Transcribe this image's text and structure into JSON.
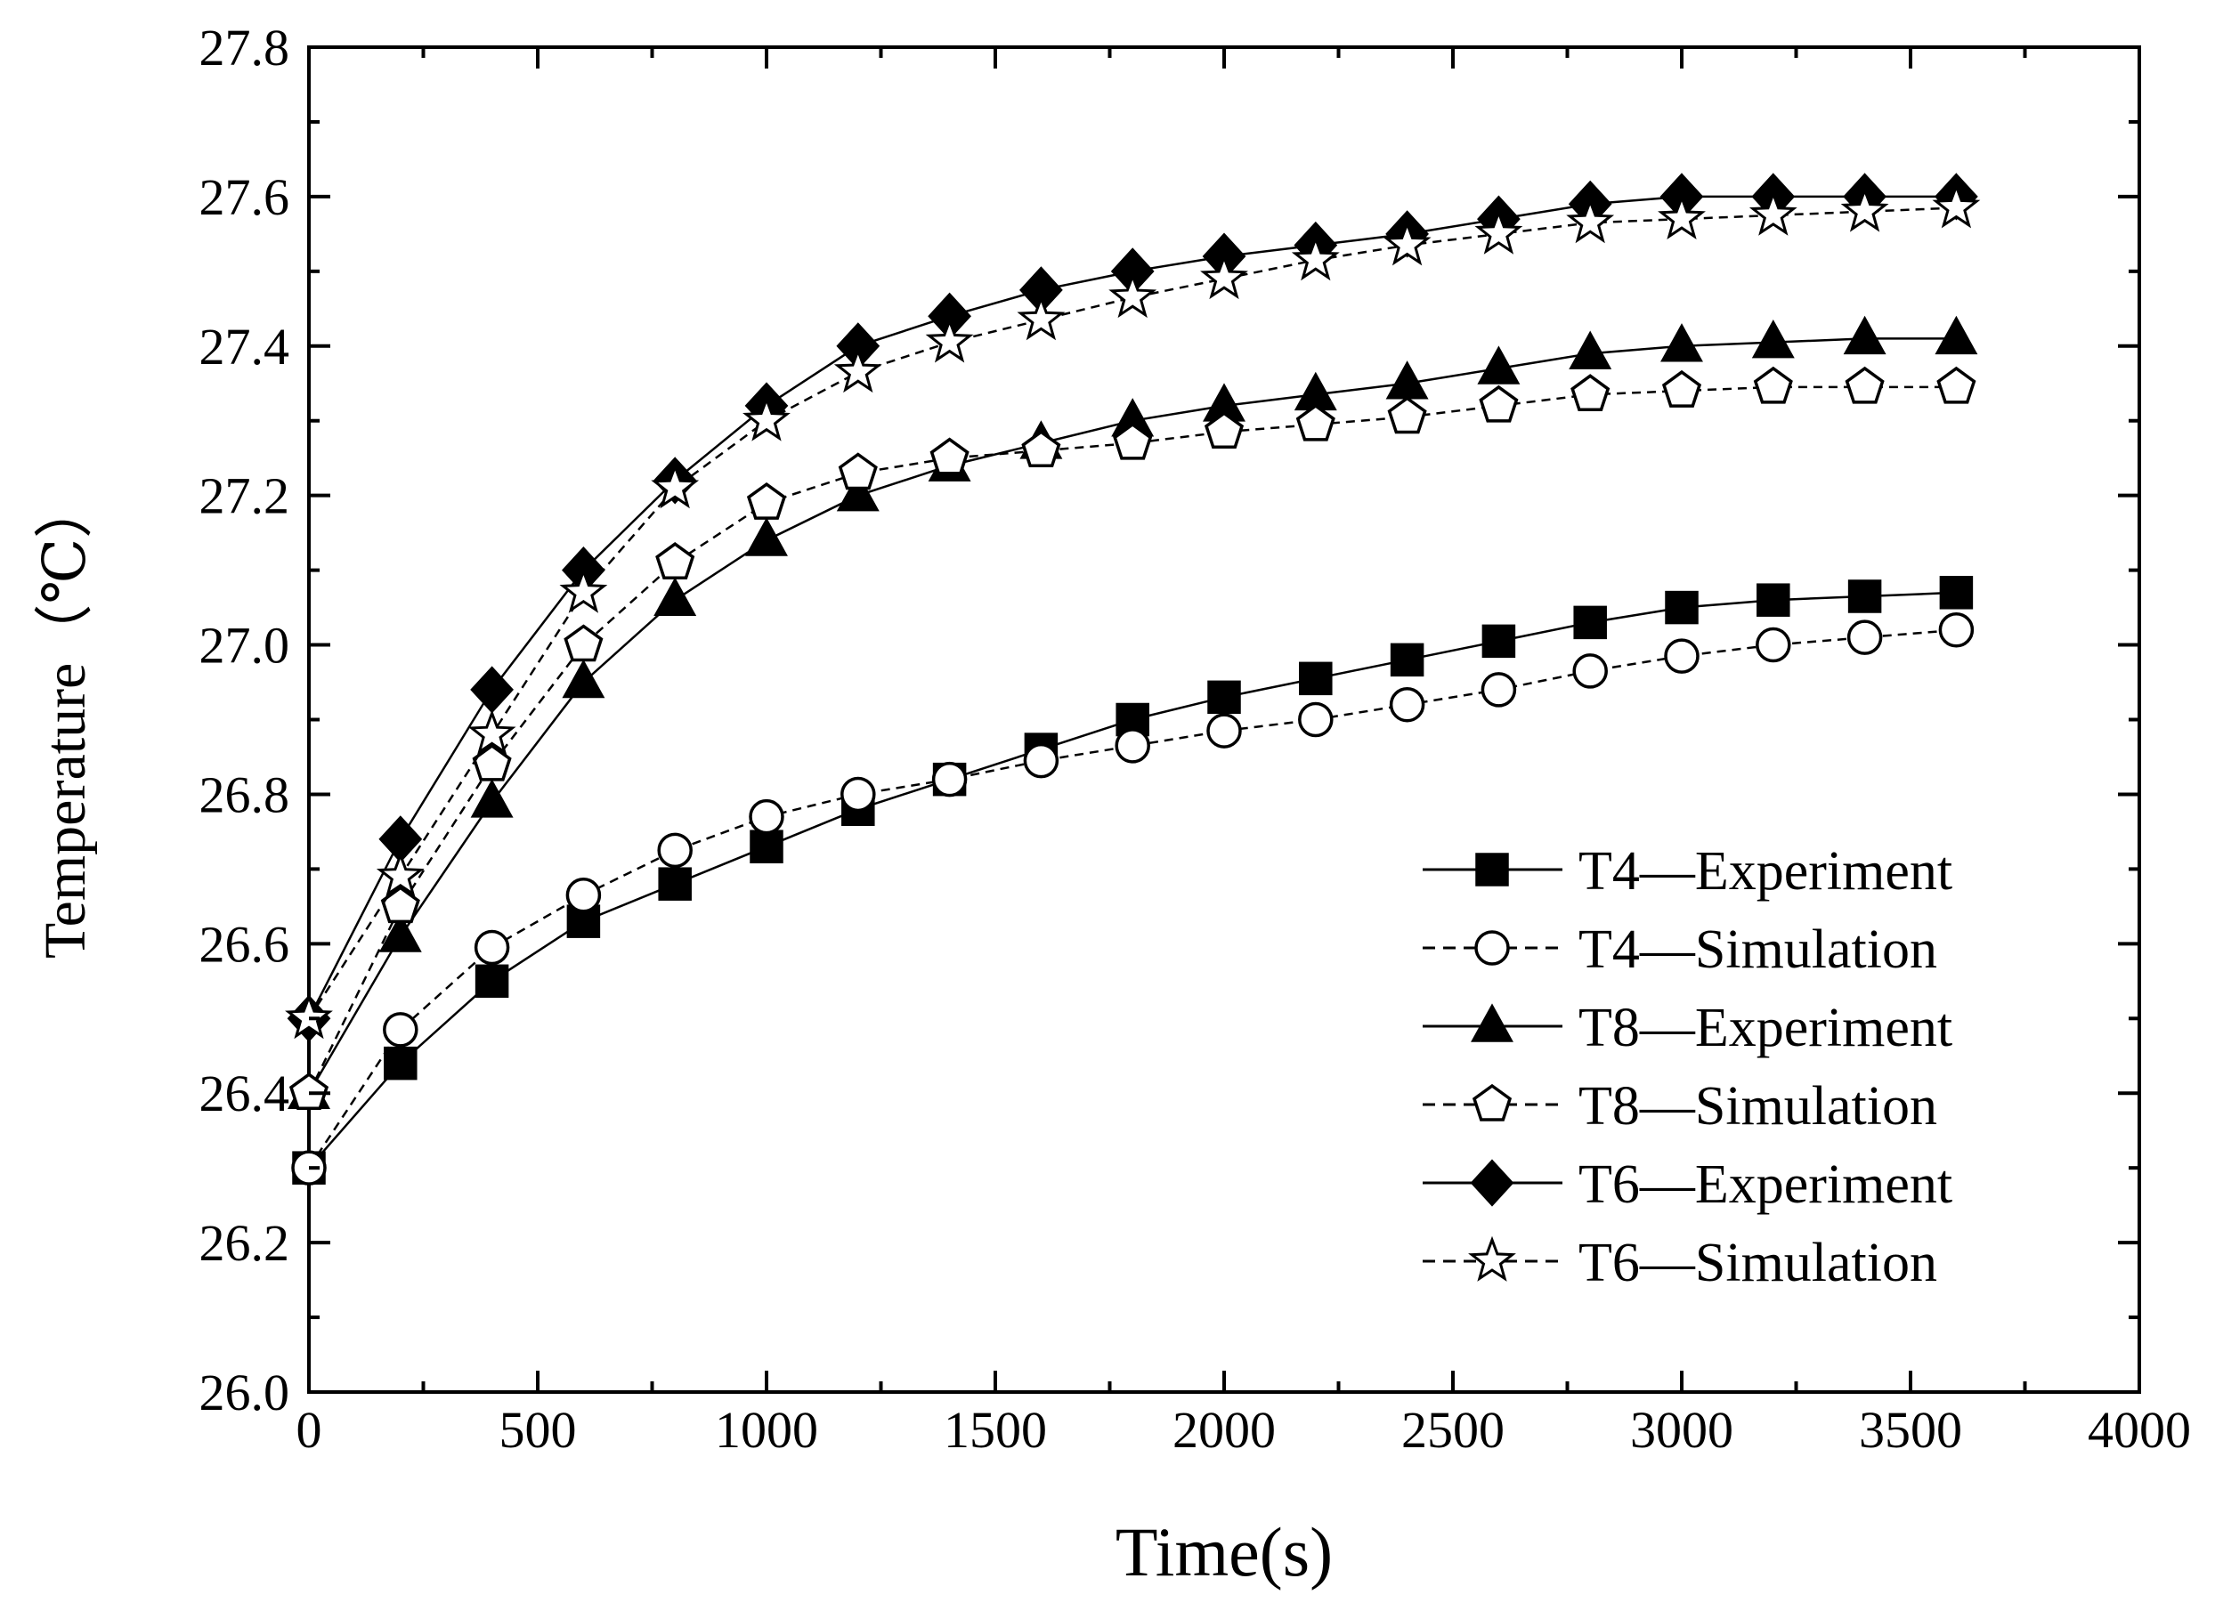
{
  "chart_data": {
    "type": "line",
    "title": "",
    "xlabel": "Time(s)",
    "ylabel": "Temperature（℃）",
    "xlim": [
      0,
      4000
    ],
    "ylim": [
      26.0,
      27.8
    ],
    "xticks": [
      0,
      500,
      1000,
      1500,
      2000,
      2500,
      3000,
      3500,
      4000
    ],
    "yticks": [
      26.0,
      26.2,
      26.4,
      26.6,
      26.8,
      27.0,
      27.2,
      27.4,
      27.6,
      27.8
    ],
    "xtick_labels": [
      "0",
      "500",
      "1000",
      "1500",
      "2000",
      "2500",
      "3000",
      "3500",
      "4000"
    ],
    "ytick_labels": [
      "26.0",
      "26.2",
      "26.4",
      "26.6",
      "26.8",
      "27.0",
      "27.2",
      "27.4",
      "27.6",
      "27.8"
    ],
    "grid": false,
    "legend_position": "bottom-right",
    "x": [
      0,
      200,
      400,
      600,
      800,
      1000,
      1200,
      1400,
      1600,
      1800,
      2000,
      2200,
      2400,
      2600,
      2800,
      3000,
      3200,
      3400,
      3600
    ],
    "series": [
      {
        "name": "T4—Experiment",
        "marker": "square-filled",
        "line": "solid",
        "color": "#000000",
        "values": [
          26.3,
          26.44,
          26.55,
          26.63,
          26.68,
          26.73,
          26.78,
          26.82,
          26.86,
          26.9,
          26.93,
          26.955,
          26.98,
          27.005,
          27.03,
          27.05,
          27.06,
          27.065,
          27.07
        ]
      },
      {
        "name": "T4—Simulation",
        "marker": "circle-open",
        "line": "dashed",
        "color": "#000000",
        "values": [
          26.3,
          26.485,
          26.595,
          26.665,
          26.725,
          26.77,
          26.8,
          26.82,
          26.845,
          26.865,
          26.885,
          26.9,
          26.92,
          26.94,
          26.965,
          26.985,
          27.0,
          27.01,
          27.02
        ]
      },
      {
        "name": "T8—Experiment",
        "marker": "triangle-filled",
        "line": "solid",
        "color": "#000000",
        "values": [
          26.4,
          26.61,
          26.79,
          26.95,
          27.06,
          27.14,
          27.2,
          27.24,
          27.27,
          27.3,
          27.32,
          27.335,
          27.35,
          27.37,
          27.39,
          27.4,
          27.405,
          27.41,
          27.41
        ]
      },
      {
        "name": "T8—Simulation",
        "marker": "pentagon-open",
        "line": "dashed",
        "color": "#000000",
        "values": [
          26.4,
          26.65,
          26.84,
          27.0,
          27.11,
          27.19,
          27.23,
          27.25,
          27.26,
          27.27,
          27.285,
          27.295,
          27.305,
          27.32,
          27.335,
          27.34,
          27.345,
          27.345,
          27.345
        ]
      },
      {
        "name": "T6—Experiment",
        "marker": "diamond-filled",
        "line": "solid",
        "color": "#000000",
        "values": [
          26.5,
          26.74,
          26.94,
          27.1,
          27.22,
          27.32,
          27.4,
          27.44,
          27.475,
          27.5,
          27.52,
          27.535,
          27.55,
          27.57,
          27.59,
          27.6,
          27.6,
          27.6,
          27.6
        ]
      },
      {
        "name": "T6—Simulation",
        "marker": "star-open",
        "line": "dashed",
        "color": "#000000",
        "values": [
          26.5,
          26.69,
          26.88,
          27.07,
          27.21,
          27.3,
          27.365,
          27.405,
          27.435,
          27.465,
          27.49,
          27.515,
          27.535,
          27.55,
          27.565,
          27.57,
          27.575,
          27.58,
          27.585
        ]
      }
    ]
  }
}
